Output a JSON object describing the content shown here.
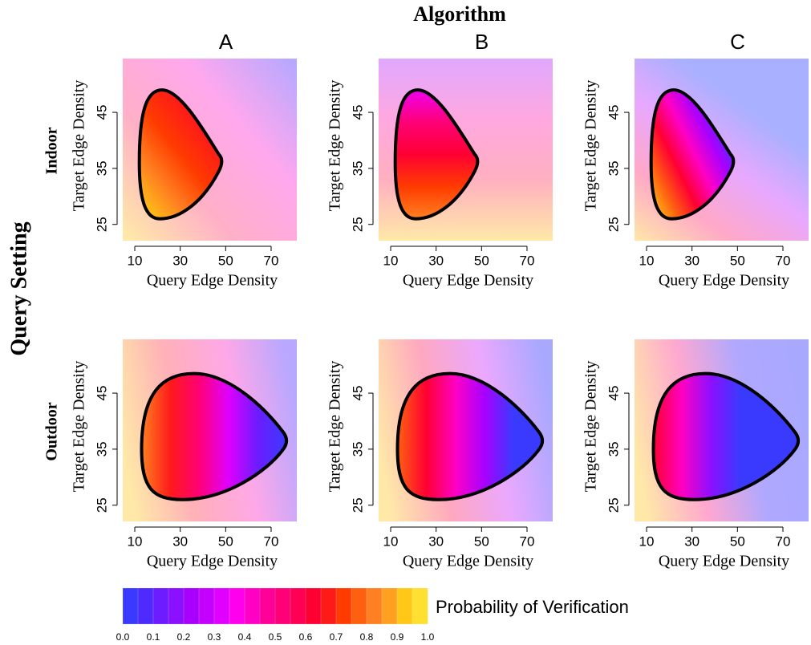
{
  "title": "Algorithm",
  "columns": [
    "A",
    "B",
    "C"
  ],
  "rows": [
    "Indoor",
    "Outdoor"
  ],
  "row_title": "Query Setting",
  "colorbar": {
    "label": "Probability of Verification",
    "lim": [
      0,
      1
    ],
    "ticks": [
      {
        "value": 0,
        "label": "0.0"
      },
      0.1,
      0.2,
      0.3,
      0.4,
      0.5,
      0.6,
      0.7,
      0.8,
      0.9,
      {
        "value": 1,
        "label": "1.0"
      }
    ],
    "colors": [
      "#3a3aff",
      "#4d2bff",
      "#6c1cff",
      "#8a10ff",
      "#a800ff",
      "#c400ff",
      "#df00ff",
      "#ff00ee",
      "#ff00c4",
      "#ff0099",
      "#ff0077",
      "#ff0055",
      "#ff0033",
      "#ff1a1a",
      "#ff3b00",
      "#ff6010",
      "#ff8020",
      "#ffa020",
      "#ffc818",
      "#ffe030"
    ]
  },
  "chart_data": [
    {
      "type": "contour",
      "xlabel": "Query Edge Density",
      "ylabel": "Target Edge Density",
      "xlim": [
        4.7,
        81.3
      ],
      "ylim": [
        22.1,
        54.6
      ],
      "xticks": [
        10,
        30,
        50,
        70
      ],
      "yticks": [
        25,
        35,
        45
      ]
    },
    {
      "type": "contour",
      "xlabel": "Query Edge Density",
      "ylabel": "Target Edge Density",
      "xlim": [
        4.7,
        81.3
      ],
      "ylim": [
        22.1,
        54.6
      ],
      "xticks": [
        10,
        30,
        50,
        70
      ],
      "yticks": [
        25,
        35,
        45
      ]
    },
    {
      "type": "contour",
      "xlabel": "Query Edge Density",
      "ylabel": "Target Edge Density",
      "xlim": [
        4.7,
        81.3
      ],
      "ylim": [
        22.1,
        54.6
      ],
      "xticks": [
        10,
        30,
        50,
        70
      ],
      "yticks": [
        25,
        35,
        45
      ]
    },
    {
      "type": "contour",
      "xlabel": "Query Edge Density",
      "ylabel": "Target Edge Density",
      "xlim": [
        4.7,
        81.3
      ],
      "ylim": [
        22.1,
        54.6
      ],
      "xticks": [
        10,
        30,
        50,
        70
      ],
      "yticks": [
        25,
        35,
        45
      ]
    },
    {
      "type": "contour",
      "xlabel": "Query Edge Density",
      "ylabel": "Target Edge Density",
      "xlim": [
        4.7,
        81.3
      ],
      "ylim": [
        22.1,
        54.6
      ],
      "xticks": [
        10,
        30,
        50,
        70
      ],
      "yticks": [
        25,
        35,
        45
      ]
    },
    {
      "type": "contour",
      "xlabel": "Query Edge Density",
      "ylabel": "Target Edge Density",
      "xlim": [
        4.7,
        81.3
      ],
      "ylim": [
        22.1,
        54.6
      ],
      "xticks": [
        10,
        30,
        50,
        70
      ],
      "yticks": [
        25,
        35,
        45
      ]
    }
  ]
}
